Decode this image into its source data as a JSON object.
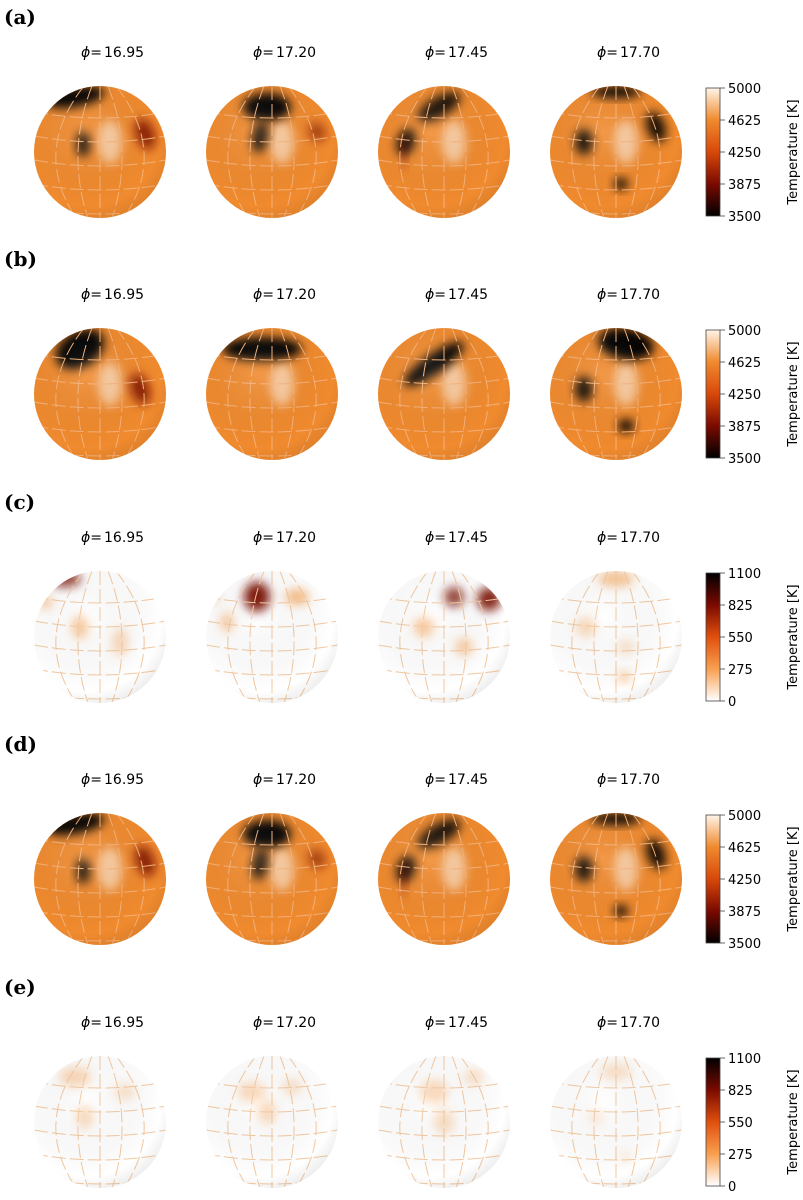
{
  "phase_prefix": "ϕ=",
  "panels": [
    {
      "label": "(a)",
      "phases": [
        "16.95",
        "17.20",
        "17.45",
        "17.70"
      ],
      "colorbar": {
        "label": "Temperature [K]",
        "ticks": [
          3500,
          3875,
          4250,
          4625,
          5000
        ],
        "colormap": [
          "#000000",
          "#7a0a00",
          "#d8480a",
          "#f08a2e",
          "#fff4e8"
        ]
      }
    },
    {
      "label": "(b)",
      "phases": [
        "16.95",
        "17.20",
        "17.45",
        "17.70"
      ],
      "colorbar": {
        "label": "Temperature [K]",
        "ticks": [
          3500,
          3875,
          4250,
          4625,
          5000
        ],
        "colormap": [
          "#000000",
          "#7a0a00",
          "#d8480a",
          "#f08a2e",
          "#fff4e8"
        ]
      }
    },
    {
      "label": "(c)",
      "phases": [
        "16.95",
        "17.20",
        "17.45",
        "17.70"
      ],
      "colorbar": {
        "label": "Temperature [K]",
        "ticks": [
          0,
          275,
          550,
          825,
          1100
        ],
        "colormap": [
          "#ffffff",
          "#f8a050",
          "#e0500e",
          "#7a0a00",
          "#000000"
        ]
      }
    },
    {
      "label": "(d)",
      "phases": [
        "16.95",
        "17.20",
        "17.45",
        "17.70"
      ],
      "colorbar": {
        "label": "Temperature [K]",
        "ticks": [
          3500,
          3875,
          4250,
          4625,
          5000
        ],
        "colormap": [
          "#000000",
          "#7a0a00",
          "#d8480a",
          "#f08a2e",
          "#fff4e8"
        ]
      }
    },
    {
      "label": "(e)",
      "phases": [
        "16.95",
        "17.20",
        "17.45",
        "17.70"
      ],
      "colorbar": {
        "label": "Temperature [K]",
        "ticks": [
          0,
          275,
          550,
          825,
          1100
        ],
        "colormap": [
          "#ffffff",
          "#f8a050",
          "#e0500e",
          "#7a0a00",
          "#000000"
        ]
      }
    }
  ]
}
